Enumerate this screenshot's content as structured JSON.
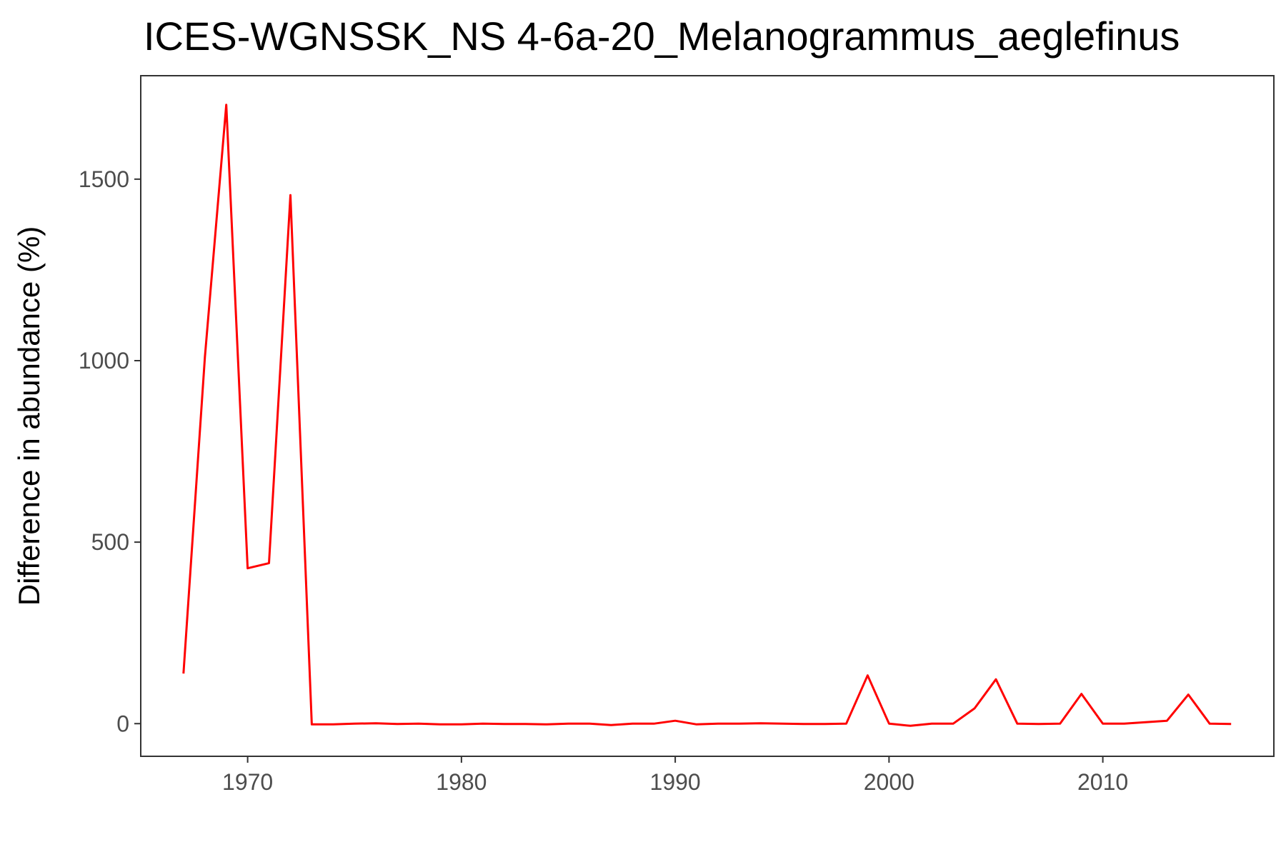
{
  "chart_data": {
    "type": "line",
    "title": "ICES-WGNSSK_NS  4-6a-20_Melanogrammus_aeglefinus",
    "xlabel": "",
    "ylabel": "Difference in abundance (%)",
    "xlim": [
      1965,
      2018
    ],
    "ylim": [
      -90,
      1785
    ],
    "x_ticks": [
      1970,
      1980,
      1990,
      2000,
      2010
    ],
    "y_ticks": [
      0,
      500,
      1000,
      1500
    ],
    "grid": false,
    "legend": "none",
    "series": [
      {
        "color": "#ff0000",
        "x": [
          1967,
          1968,
          1969,
          1970,
          1971,
          1972,
          1973,
          1974,
          1975,
          1976,
          1977,
          1978,
          1979,
          1980,
          1981,
          1982,
          1983,
          1984,
          1985,
          1986,
          1987,
          1988,
          1989,
          1990,
          1991,
          1992,
          1993,
          1994,
          1995,
          1996,
          1997,
          1998,
          1999,
          2000,
          2001,
          2002,
          2003,
          2004,
          2005,
          2006,
          2007,
          2008,
          2009,
          2010,
          2011,
          2012,
          2013,
          2014,
          2015,
          2016
        ],
        "y": [
          138,
          1010,
          1705,
          428,
          442,
          1456,
          -2,
          -2,
          0,
          1,
          -1,
          0,
          -2,
          -2,
          0,
          -1,
          -1,
          -2,
          0,
          0,
          -4,
          0,
          0,
          8,
          -2,
          0,
          0,
          1,
          0,
          -1,
          -1,
          0,
          133,
          0,
          -6,
          0,
          0,
          42,
          122,
          0,
          -1,
          0,
          82,
          0,
          0,
          4,
          8,
          80,
          0,
          -1
        ]
      }
    ]
  }
}
